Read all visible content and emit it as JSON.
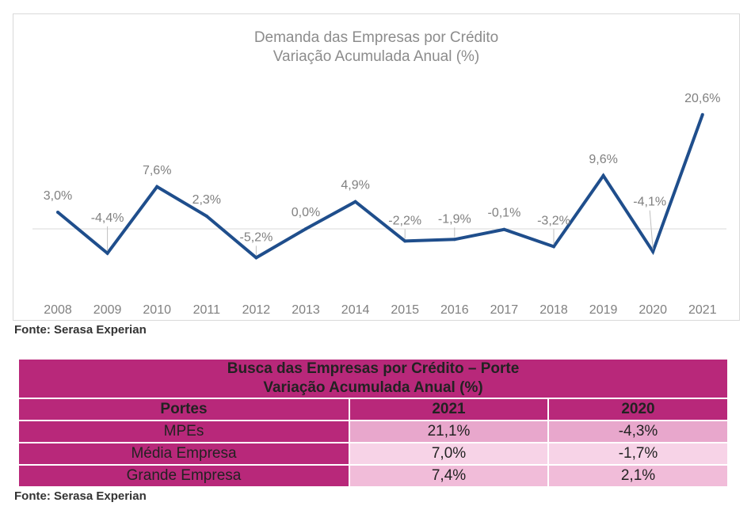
{
  "chart_data": {
    "type": "line",
    "title": "Demanda das Empresas por Crédito",
    "subtitle": "Variação Acumulada Anual (%)",
    "categories": [
      "2008",
      "2009",
      "2010",
      "2011",
      "2012",
      "2013",
      "2014",
      "2015",
      "2016",
      "2017",
      "2018",
      "2019",
      "2020",
      "2021"
    ],
    "values": [
      3.0,
      -4.4,
      7.6,
      2.3,
      -5.2,
      0.0,
      4.9,
      -2.2,
      -1.9,
      -0.1,
      -3.2,
      9.6,
      -4.1,
      20.6
    ],
    "data_labels": [
      "3,0%",
      "-4,4%",
      "7,6%",
      "2,3%",
      "-5,2%",
      "0,0%",
      "4,9%",
      "-2,2%",
      "-1,9%",
      "-0,1%",
      "-3,2%",
      "9,6%",
      "-4,1%",
      "20,6%"
    ],
    "ylim": [
      -8,
      24
    ],
    "grid": false,
    "line_color": "#1f4e8c",
    "source": "Fonte: Serasa Experian"
  },
  "table": {
    "title_line1": "Busca das Empresas por Crédito – Porte",
    "title_line2": "Variação Acumulada Anual (%)",
    "columns": [
      "Portes",
      "2021",
      "2020"
    ],
    "rows": [
      {
        "label": "MPEs",
        "v2021": "21,1%",
        "v2020": "-4,3%"
      },
      {
        "label": "Média Empresa",
        "v2021": "7,0%",
        "v2020": "-1,7%"
      },
      {
        "label": "Grande Empresa",
        "v2021": "7,4%",
        "v2020": "2,1%"
      }
    ],
    "source": "Fonte: Serasa Experian",
    "colors": {
      "header": "#b8287a",
      "cell_dark": "#e8a7cc",
      "cell_light": "#f7d3e7"
    }
  }
}
